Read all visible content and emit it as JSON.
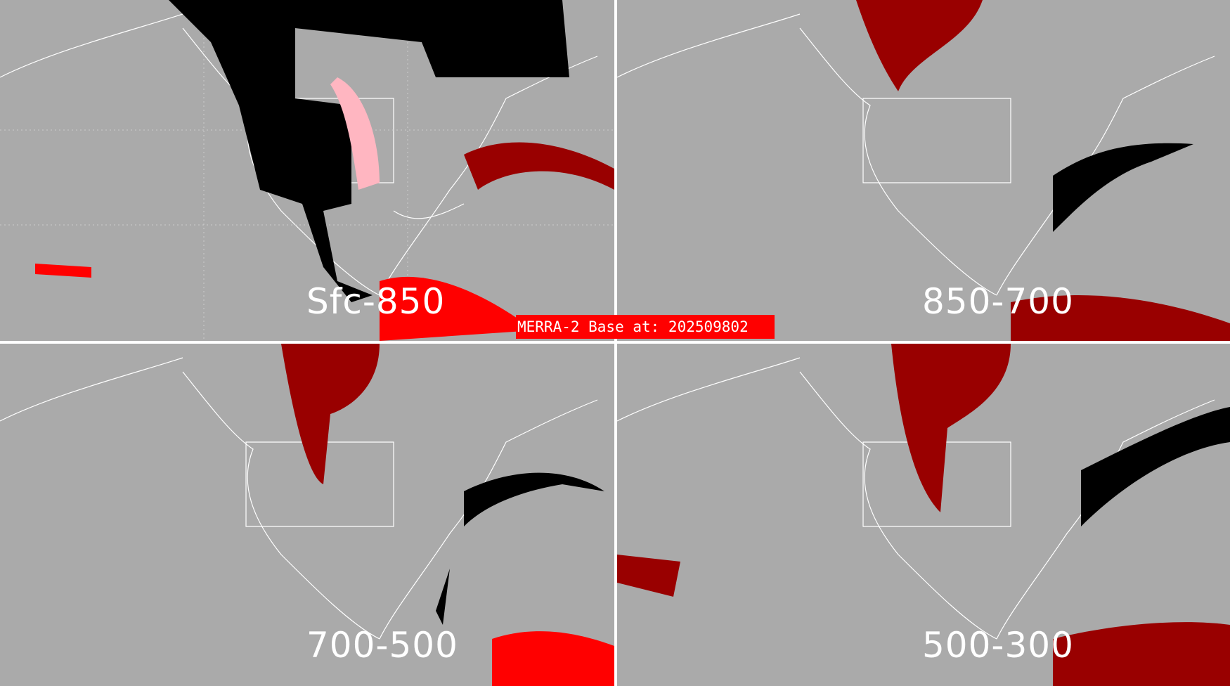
{
  "banner": {
    "text": "MERRA-2 Base at: 202509802"
  },
  "panels": [
    {
      "label": "Sfc-850"
    },
    {
      "label": "850-700"
    },
    {
      "label": "700-500"
    },
    {
      "label": "500-300"
    }
  ],
  "colors": {
    "background": "#aaaaaa",
    "coastline": "#ffffff",
    "class_black": "#000000",
    "class_dark_red": "#990000",
    "class_red": "#ff0000",
    "class_pink": "#ffb6c1"
  }
}
